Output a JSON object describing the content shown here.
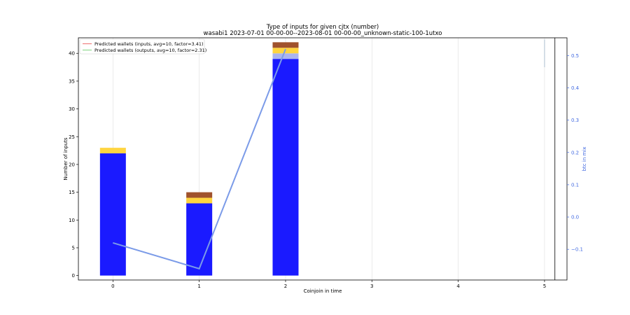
{
  "chart_data": {
    "type": "bar",
    "title": "Type of inputs for given cjtx (number)",
    "subtitle": "wasabi1 2023-07-01 00-00-00--2023-08-01 00-00-00_unknown-static-100-1utxo",
    "xlabel": "Coinjoin in time",
    "ylabel": "Number of inputs",
    "y2label": "btc in mix",
    "x_ticks": [
      "0",
      "1",
      "2",
      "3",
      "4",
      "5"
    ],
    "xlim": [
      -0.4,
      5.26
    ],
    "ylim": [
      -0.8,
      42.8
    ],
    "y_ticks": [
      "0",
      "5",
      "10",
      "15",
      "20",
      "25",
      "30",
      "35",
      "40"
    ],
    "y2lim": [
      -0.195,
      0.555
    ],
    "y2_ticks": [
      "−0.1",
      "0.0",
      "0.1",
      "0.2",
      "0.3",
      "0.4",
      "0.5"
    ],
    "grid": "vertical",
    "legend": {
      "placement": "top-left",
      "entries": [
        {
          "label": "Predicted wallets (inputs, avg=10, factor=3.41)",
          "color": "#f08080"
        },
        {
          "label": "Predicted wallets (outputs, avg=10, factor=2.31)",
          "color": "#90d890"
        }
      ]
    },
    "categories": [
      0,
      1,
      2
    ],
    "series": [
      {
        "color": "#1a1aff",
        "values": [
          22,
          13,
          39
        ]
      },
      {
        "color": "#aab4f0",
        "values": [
          0,
          0,
          1
        ]
      },
      {
        "color": "#ffd540",
        "values": [
          1,
          1,
          1
        ]
      },
      {
        "color": "#a0522d",
        "values": [
          0,
          1,
          1
        ]
      }
    ],
    "line": {
      "axis": "right",
      "color": "#7b9be8",
      "x": [
        0,
        1,
        2
      ],
      "y": [
        -0.08,
        -0.16,
        0.52
      ]
    },
    "markers": {
      "vertical_line_x": 5.12,
      "vertical_line_color": "#000000",
      "short_line_x": 5.0,
      "short_line_y_range": [
        37.5,
        42.5
      ],
      "short_line_color": "#9ab0c8"
    }
  }
}
